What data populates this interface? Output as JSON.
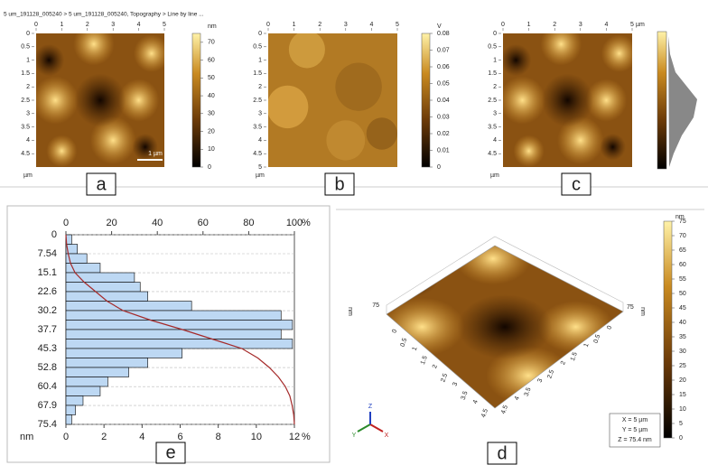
{
  "header": {
    "breadcrumb": "5 um_191128_005240 > 5 um_191128_005240, Topography > Line by line ..."
  },
  "panels": {
    "a": {
      "label": "a",
      "xlim": [
        0,
        5
      ],
      "xticks": [
        0,
        1,
        2,
        3,
        4,
        5
      ],
      "yticks": [
        0,
        0.5,
        1,
        1.5,
        2,
        2.5,
        3,
        3.5,
        4,
        4.5
      ],
      "axis_unit": "µm",
      "scale_bar": "1 µm",
      "colorbar": {
        "unit": "nm",
        "lim": [
          0,
          75
        ],
        "ticks": [
          0,
          10,
          20,
          30,
          40,
          50,
          60,
          70
        ]
      }
    },
    "b": {
      "label": "b",
      "xlim": [
        0,
        5
      ],
      "xticks": [
        0,
        1,
        2,
        3,
        4,
        5
      ],
      "yticks": [
        0,
        0.5,
        1,
        1.5,
        2,
        2.5,
        3,
        3.5,
        4,
        4.5,
        5
      ],
      "axis_unit": "µm",
      "colorbar": {
        "unit": "V",
        "lim": [
          0,
          0.08
        ],
        "ticks": [
          0,
          0.01,
          0.02,
          0.03,
          0.04,
          0.05,
          0.06,
          0.07,
          0.08
        ]
      }
    },
    "c": {
      "label": "c",
      "xlim": [
        0,
        5
      ],
      "xticks": [
        0,
        1,
        2,
        3,
        4,
        5
      ],
      "yticks": [
        0,
        0.5,
        1,
        1.5,
        2,
        2.5,
        3,
        3.5,
        4,
        4.5
      ],
      "axis_unit": "µm"
    },
    "d": {
      "label": "d",
      "edge_ticks": [
        0,
        0.5,
        1,
        1.5,
        2,
        2.5,
        3,
        3.5,
        4,
        4.5
      ],
      "z_label": "75",
      "axis_unit": "nm",
      "colorbar": {
        "unit": "nm",
        "lim": [
          0,
          75
        ],
        "ticks": [
          0,
          5,
          10,
          15,
          20,
          25,
          30,
          35,
          40,
          45,
          50,
          55,
          60,
          65,
          70,
          75
        ]
      },
      "info": [
        "X = 5 µm",
        "Y = 5 µm",
        "Z = 75.4 nm"
      ],
      "triad": [
        "X",
        "Y",
        "Z"
      ]
    },
    "e": {
      "label": "e"
    }
  },
  "chart_data": {
    "type": "histogram",
    "orientation": "horizontal",
    "color": "#bdd8f3",
    "bins": [
      0,
      3.77,
      7.54,
      11.31,
      15.08,
      18.85,
      22.62,
      26.39,
      30.16,
      33.93,
      37.7,
      41.47,
      45.24,
      49.01,
      52.78,
      56.55,
      60.32,
      64.09,
      67.86,
      71.63,
      75.4
    ],
    "values": [
      0.3,
      0.6,
      1.1,
      1.8,
      3.6,
      3.9,
      4.3,
      6.6,
      11.3,
      11.9,
      11.3,
      11.9,
      6.1,
      4.3,
      3.3,
      2.2,
      1.8,
      0.9,
      0.5,
      0.3
    ],
    "ylim": [
      0,
      75.4
    ],
    "yticks": [
      0,
      7.54,
      15.1,
      22.6,
      30.2,
      37.7,
      45.3,
      52.8,
      60.4,
      67.9,
      75.4
    ],
    "ylabel": "nm",
    "xlim": [
      0,
      12
    ],
    "xticks": [
      0,
      2,
      4,
      6,
      8,
      10,
      12
    ],
    "xlabel": "%",
    "cumulative": {
      "color": "#a52a2a",
      "xlim": [
        0,
        100
      ],
      "xticks": [
        0,
        20,
        40,
        60,
        80,
        100
      ],
      "xlabel": "%",
      "values": [
        0,
        0.3,
        1,
        2,
        4,
        8,
        13,
        18,
        25,
        37,
        51,
        64,
        77,
        84,
        89,
        93,
        96,
        98,
        99,
        99.7,
        100
      ]
    }
  }
}
